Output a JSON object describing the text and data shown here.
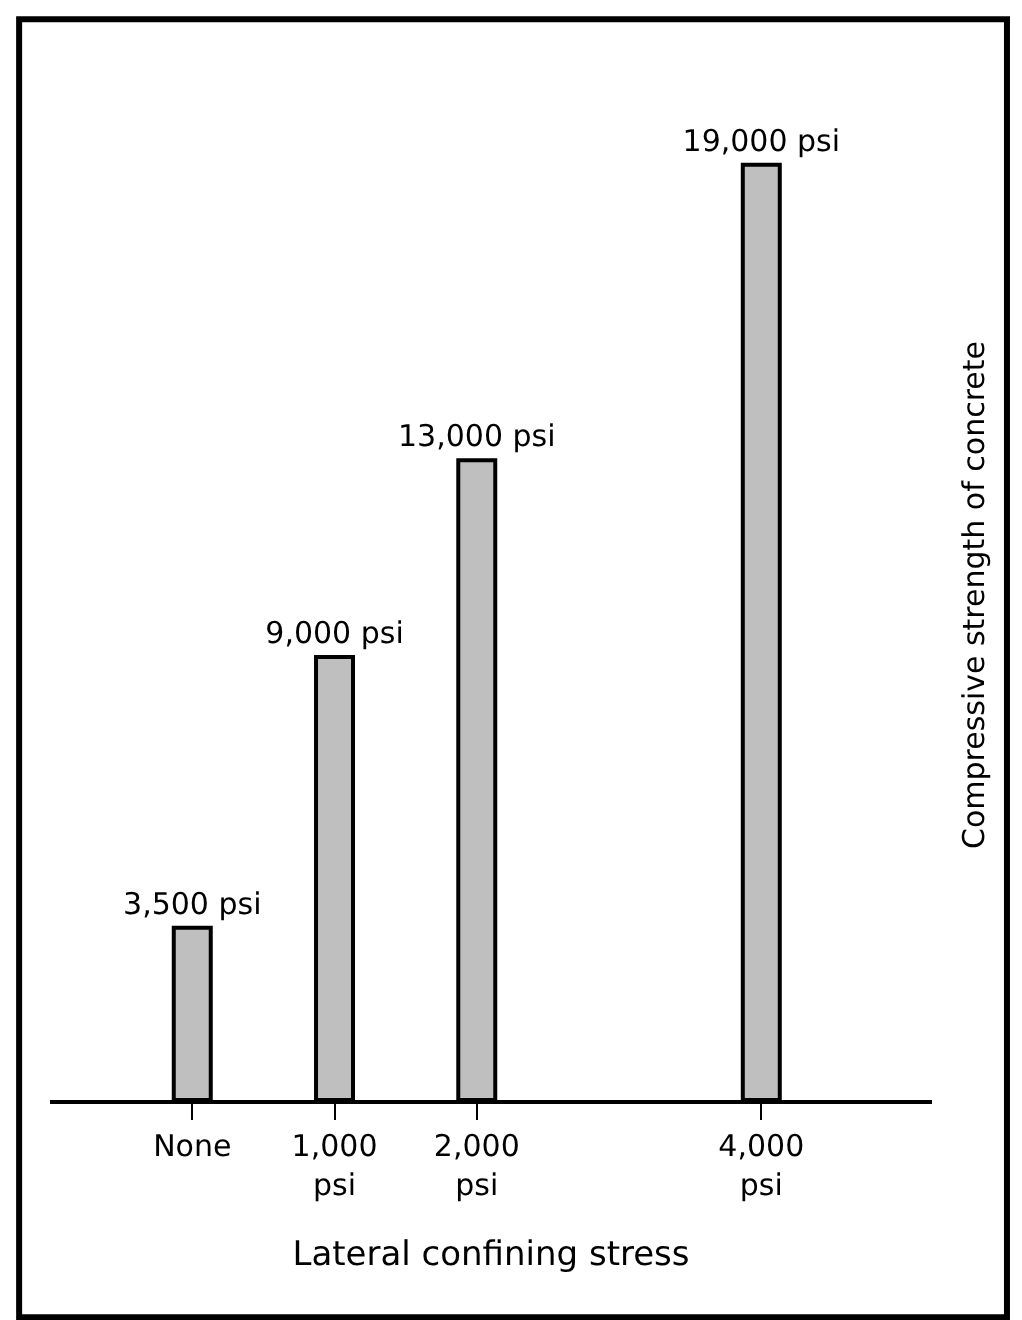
{
  "chart_data": {
    "type": "bar",
    "x": [
      0,
      1000,
      2000,
      4000
    ],
    "values": [
      3500,
      9000,
      13000,
      19000
    ],
    "value_labels": [
      "3,500 psi",
      "9,000 psi",
      "13,000 psi",
      "19,000 psi"
    ],
    "color": "#bfbfbf",
    "xlabel": "Lateral confining stress",
    "ylabel": "Compressive strength of concrete",
    "xlim": [
      -1000,
      5200
    ],
    "xticks": [
      {
        "value": 0,
        "label": "None"
      },
      {
        "value": 1000,
        "label": "1,000 psi"
      },
      {
        "value": 2000,
        "label": "2,000 psi"
      },
      {
        "value": 4000,
        "label": "4,000 psi"
      }
    ],
    "legend": false
  }
}
